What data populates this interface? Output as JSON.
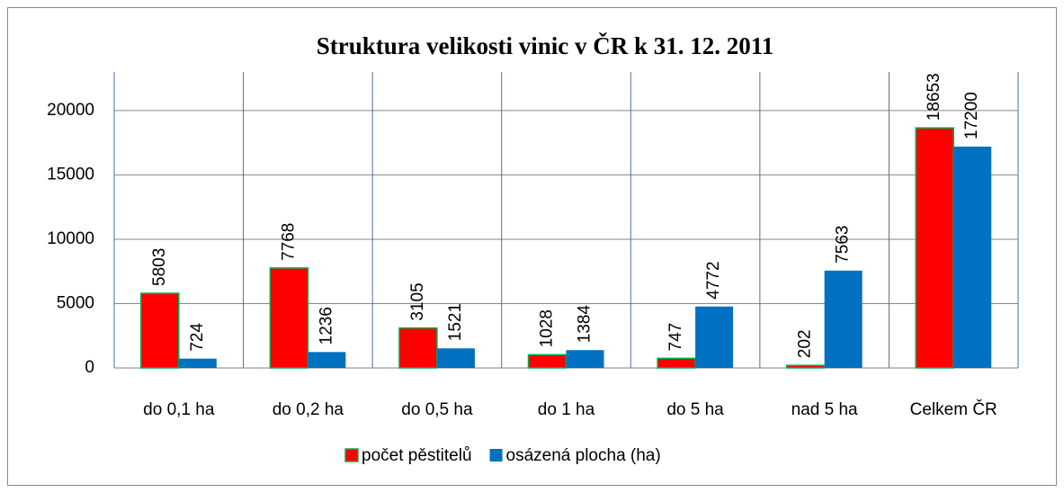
{
  "chart_data": {
    "type": "bar",
    "title": "Struktura velikosti vinic v ČR k 31. 12. 2011",
    "categories": [
      "do 0,1 ha",
      "do 0,2 ha",
      "do 0,5 ha",
      "do 1 ha",
      "do 5 ha",
      "nad 5 ha",
      "Celkem ČR"
    ],
    "series": [
      {
        "name": "počet pěstitelů",
        "color": "#ff0000",
        "edge_color": "#00b050",
        "values": [
          5803,
          7768,
          3105,
          1028,
          747,
          202,
          18653
        ]
      },
      {
        "name": "osázená plocha (ha)",
        "color": "#0070c0",
        "values": [
          724,
          1236,
          1521,
          1384,
          4772,
          7563,
          17200
        ]
      }
    ],
    "ylim": [
      0,
      23000
    ],
    "yticks": [
      0,
      5000,
      10000,
      15000,
      20000
    ],
    "grid": true,
    "legend": "bottom"
  }
}
